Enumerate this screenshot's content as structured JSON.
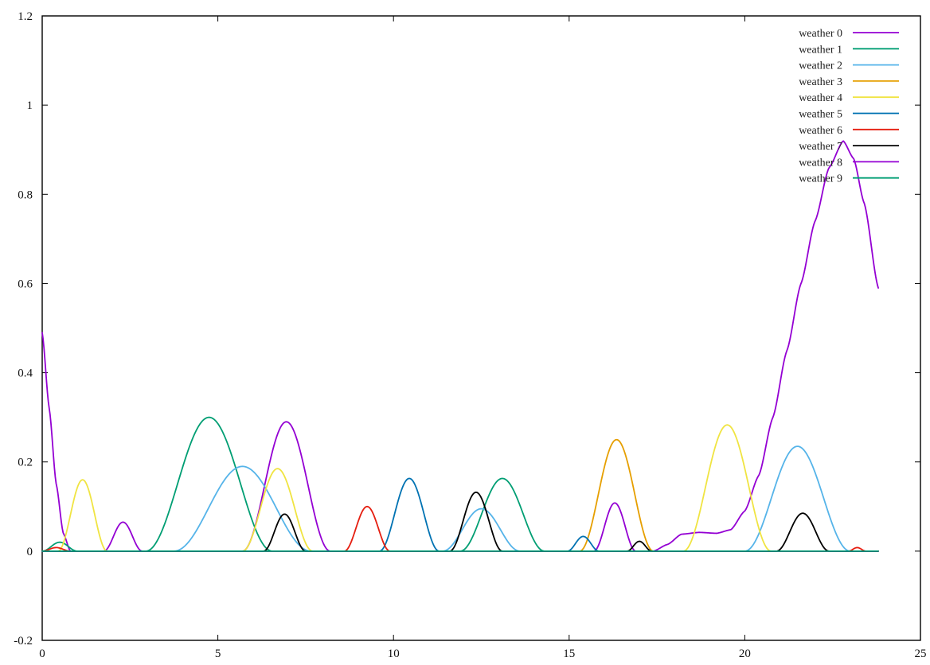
{
  "chart_data": {
    "type": "line",
    "title": "",
    "xlabel": "",
    "ylabel": "",
    "xlim": [
      0,
      25
    ],
    "ylim": [
      -0.2,
      1.2
    ],
    "x_ticks": [
      0,
      5,
      10,
      15,
      20,
      25
    ],
    "y_ticks": [
      -0.2,
      0,
      0.2,
      0.4,
      0.6,
      0.8,
      1,
      1.2
    ],
    "grid": false,
    "legend_position": "top-right",
    "x_domain": [
      0,
      23.8
    ],
    "series": [
      {
        "name": "weather 0",
        "color": "#9400d3",
        "bumps": [
          {
            "c": 2.3,
            "w": 0.55,
            "h": 0.065
          },
          {
            "c": 6.95,
            "w": 1.25,
            "h": 0.29
          },
          {
            "c": 16.3,
            "w": 0.6,
            "h": 0.108
          },
          {
            "c": 21.35,
            "w": 0.75,
            "h": 0.22
          }
        ],
        "points": [
          [
            0,
            0.49
          ],
          [
            0.2,
            0.32
          ],
          [
            0.4,
            0.15
          ],
          [
            0.6,
            0.04
          ],
          [
            0.8,
            0.0
          ],
          [
            17.4,
            0.0
          ],
          [
            17.8,
            0.015
          ],
          [
            18.2,
            0.038
          ],
          [
            18.7,
            0.042
          ],
          [
            19.2,
            0.04
          ],
          [
            19.6,
            0.048
          ],
          [
            20.0,
            0.09
          ],
          [
            20.4,
            0.17
          ],
          [
            20.8,
            0.3
          ],
          [
            21.2,
            0.45
          ],
          [
            21.6,
            0.6
          ],
          [
            22.0,
            0.74
          ],
          [
            22.4,
            0.86
          ],
          [
            22.8,
            0.92
          ],
          [
            23.1,
            0.88
          ],
          [
            23.4,
            0.78
          ],
          [
            23.8,
            0.59
          ]
        ]
      },
      {
        "name": "weather 1",
        "color": "#009e73",
        "bumps": [
          {
            "c": 0.5,
            "w": 0.5,
            "h": 0.02
          },
          {
            "c": 4.75,
            "w": 1.8,
            "h": 0.3
          },
          {
            "c": 13.1,
            "w": 1.2,
            "h": 0.163
          }
        ]
      },
      {
        "name": "weather 2",
        "color": "#56b4e9",
        "bumps": [
          {
            "c": 5.7,
            "w": 1.95,
            "h": 0.19
          },
          {
            "c": 12.5,
            "w": 1.1,
            "h": 0.095
          },
          {
            "c": 21.5,
            "w": 1.5,
            "h": 0.235
          }
        ]
      },
      {
        "name": "weather 3",
        "color": "#e69f00",
        "bumps": [
          {
            "c": 16.35,
            "w": 1.05,
            "h": 0.25
          }
        ]
      },
      {
        "name": "weather 4",
        "color": "#f0e442",
        "bumps": [
          {
            "c": 1.15,
            "w": 0.7,
            "h": 0.16
          },
          {
            "c": 6.7,
            "w": 1.0,
            "h": 0.185
          },
          {
            "c": 19.5,
            "w": 1.25,
            "h": 0.283
          }
        ]
      },
      {
        "name": "weather 5",
        "color": "#0072b2",
        "bumps": [
          {
            "c": 10.45,
            "w": 0.85,
            "h": 0.163
          },
          {
            "c": 15.4,
            "w": 0.45,
            "h": 0.033
          }
        ]
      },
      {
        "name": "weather 6",
        "color": "#e51e10",
        "bumps": [
          {
            "c": 0.4,
            "w": 0.4,
            "h": 0.008
          },
          {
            "c": 9.25,
            "w": 0.65,
            "h": 0.1
          },
          {
            "c": 23.2,
            "w": 0.25,
            "h": 0.008
          }
        ]
      },
      {
        "name": "weather 7",
        "color": "#000000",
        "bumps": [
          {
            "c": 6.9,
            "w": 0.6,
            "h": 0.083
          },
          {
            "c": 12.35,
            "w": 0.75,
            "h": 0.132
          },
          {
            "c": 17.0,
            "w": 0.35,
            "h": 0.022
          },
          {
            "c": 21.65,
            "w": 0.75,
            "h": 0.085
          }
        ]
      },
      {
        "name": "weather 8",
        "color": "#9400d3",
        "bumps": []
      },
      {
        "name": "weather 9",
        "color": "#009e73",
        "bumps": []
      }
    ]
  }
}
